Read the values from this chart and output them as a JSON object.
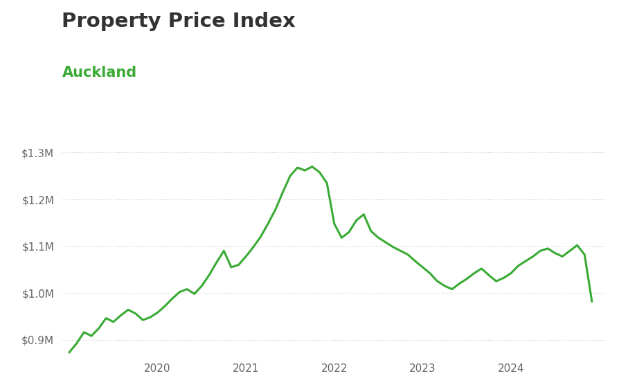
{
  "title": "Property Price Index",
  "subtitle": "Auckland",
  "title_color": "#333333",
  "subtitle_color": "#3aaa35",
  "line_color": "#3aaa35",
  "background_color": "#ffffff",
  "grid_color": "#cccccc",
  "x_labels": [
    "2020",
    "2021",
    "2022",
    "2023",
    "2024"
  ],
  "ylim": [
    0.865,
    1.345
  ],
  "yticks": [
    0.9,
    1.0,
    1.1,
    1.2,
    1.3
  ],
  "ytick_labels": [
    "$0.9M",
    "$1.0M",
    "$1.1M",
    "$1.2M",
    "$1.3M"
  ],
  "data_y": [
    0.873,
    0.892,
    0.916,
    0.908,
    0.924,
    0.946,
    0.938,
    0.952,
    0.964,
    0.956,
    0.942,
    0.948,
    0.958,
    0.972,
    0.988,
    1.002,
    1.008,
    0.998,
    1.015,
    1.038,
    1.065,
    1.09,
    1.055,
    1.06,
    1.078,
    1.098,
    1.12,
    1.148,
    1.178,
    1.215,
    1.25,
    1.268,
    1.262,
    1.27,
    1.258,
    1.235,
    1.148,
    1.118,
    1.13,
    1.155,
    1.168,
    1.132,
    1.118,
    1.108,
    1.098,
    1.09,
    1.082,
    1.068,
    1.055,
    1.042,
    1.025,
    1.015,
    1.008,
    1.02,
    1.03,
    1.042,
    1.052,
    1.038,
    1.025,
    1.032,
    1.042,
    1.058,
    1.068,
    1.078,
    1.09,
    1.095,
    1.085,
    1.078,
    1.09,
    1.102,
    1.082,
    0.982
  ],
  "x_tick_positions": [
    12,
    24,
    36,
    48,
    60
  ],
  "line_width": 2.2
}
